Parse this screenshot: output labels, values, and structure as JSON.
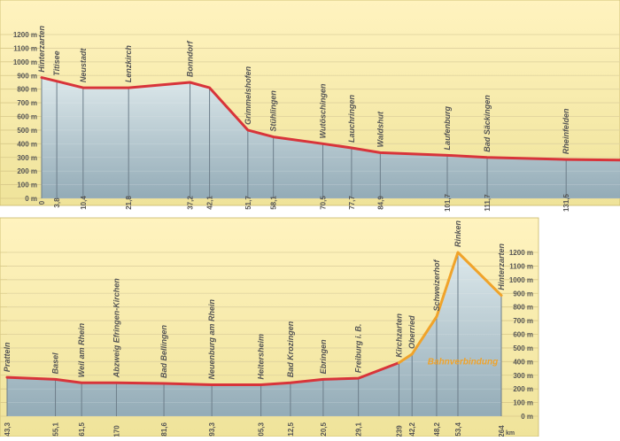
{
  "units": {
    "elevation": "m",
    "distance": "km"
  },
  "styles": {
    "panel_top_color": "#fff3bf",
    "panel_bottom_color": "#efe39a",
    "fill_top_color": "#dbe8ee",
    "fill_bottom_color": "#8ea8b8",
    "grid_color": "#d8c98a",
    "station_line_color": "#6d7e8a",
    "profile_color": "#d8343a",
    "connection_color": "#f0a32a",
    "text_color": "#555555"
  },
  "chart_data": [
    {
      "type": "area",
      "panel": "top",
      "ylim": [
        0,
        1200
      ],
      "yticks": [
        0,
        100,
        200,
        300,
        400,
        500,
        600,
        700,
        800,
        900,
        1000,
        1100,
        1200
      ],
      "ytick_labels": [
        "0 m",
        "100 m",
        "200 m",
        "300 m",
        "400 m",
        "500 m",
        "600 m",
        "700 m",
        "800 m",
        "900 m",
        "1000 m",
        "1100 m",
        "1200 m"
      ],
      "xlim": [
        0,
        145
      ],
      "grid": true,
      "stations": [
        {
          "name": "Hinterzarten",
          "km": 0,
          "km_label": "0",
          "elevation": 885
        },
        {
          "name": "Titisee",
          "km": 3.8,
          "km_label": "3,8",
          "elevation": 858
        },
        {
          "name": "Neustadt",
          "km": 10.4,
          "km_label": "10,4",
          "elevation": 810
        },
        {
          "name": "Lenzkirch",
          "km": 21.8,
          "km_label": "21,8",
          "elevation": 810
        },
        {
          "name": "Bonndorf",
          "km": 37.2,
          "km_label": "37,2",
          "elevation": 850
        },
        {
          "name": "",
          "km": 42.1,
          "km_label": "42,1",
          "elevation": 810
        },
        {
          "name": "Grimmelshofen",
          "km": 51.7,
          "km_label": "51,7",
          "elevation": 500
        },
        {
          "name": "Stühlingen",
          "km": 58.1,
          "km_label": "58,1",
          "elevation": 450
        },
        {
          "name": "Wutöschingen",
          "km": 70.5,
          "km_label": "70,5",
          "elevation": 400
        },
        {
          "name": "Lauchringen",
          "km": 77.7,
          "km_label": "77,7",
          "elevation": 370
        },
        {
          "name": "Waldshut",
          "km": 84.9,
          "km_label": "84,9",
          "elevation": 335
        },
        {
          "name": "Laufenburg",
          "km": 101.7,
          "km_label": "101,7",
          "elevation": 315
        },
        {
          "name": "Bad Säckingen",
          "km": 111.7,
          "km_label": "111,7",
          "elevation": 300
        },
        {
          "name": "Rheinfelden",
          "km": 131.5,
          "km_label": "131,5",
          "elevation": 285
        }
      ],
      "profile": [
        {
          "km": 0,
          "elevation": 885
        },
        {
          "km": 3.8,
          "elevation": 858
        },
        {
          "km": 10.4,
          "elevation": 810
        },
        {
          "km": 21.8,
          "elevation": 810
        },
        {
          "km": 37.2,
          "elevation": 850
        },
        {
          "km": 42.1,
          "elevation": 810
        },
        {
          "km": 51.7,
          "elevation": 500
        },
        {
          "km": 58.1,
          "elevation": 450
        },
        {
          "km": 70.5,
          "elevation": 400
        },
        {
          "km": 77.7,
          "elevation": 370
        },
        {
          "km": 84.9,
          "elevation": 335
        },
        {
          "km": 101.7,
          "elevation": 315
        },
        {
          "km": 111.7,
          "elevation": 300
        },
        {
          "km": 131.5,
          "elevation": 285
        },
        {
          "km": 145,
          "elevation": 280
        }
      ]
    },
    {
      "type": "area",
      "panel": "bottom",
      "ylim": [
        0,
        1200
      ],
      "yticks": [
        0,
        100,
        200,
        300,
        400,
        500,
        600,
        700,
        800,
        900,
        1000,
        1100,
        1200
      ],
      "ytick_labels": [
        "0 m",
        "100 m",
        "200 m",
        "300 m",
        "400 m",
        "500 m",
        "600 m",
        "700 m",
        "800 m",
        "900 m",
        "1000 m",
        "1100 m",
        "1200 m"
      ],
      "xlim": [
        143.3,
        264
      ],
      "grid": true,
      "stations": [
        {
          "name": "Pratteln",
          "km": 143.3,
          "km_label": "143,3",
          "elevation": 285
        },
        {
          "name": "Basel",
          "km": 155.1,
          "km_label": "155,1",
          "elevation": 270
        },
        {
          "name": "Weil am Rhein",
          "km": 161.5,
          "km_label": "161,5",
          "elevation": 245
        },
        {
          "name": "Abzweig Efringen-Kirchen",
          "km": 170,
          "km_label": "170",
          "elevation": 245
        },
        {
          "name": "Bad Bellingen",
          "km": 181.6,
          "km_label": "181,6",
          "elevation": 240
        },
        {
          "name": "Neuenburg am Rhein",
          "km": 193.3,
          "km_label": "193,3",
          "elevation": 230
        },
        {
          "name": "Heitersheim",
          "km": 205.3,
          "km_label": "205,3",
          "elevation": 230
        },
        {
          "name": "Bad Krozingen",
          "km": 212.5,
          "km_label": "212,5",
          "elevation": 245
        },
        {
          "name": "Ebringen",
          "km": 220.5,
          "km_label": "220,5",
          "elevation": 270
        },
        {
          "name": "Freiburg i. B.",
          "km": 229.1,
          "km_label": "229,1",
          "elevation": 278
        },
        {
          "name": "Kirchzarten",
          "km": 239,
          "km_label": "239",
          "elevation": 392
        },
        {
          "name": "Oberried",
          "km": 242.2,
          "km_label": "242,2",
          "elevation": 455
        },
        {
          "name": "Schweizerhof",
          "km": 248.2,
          "km_label": "248,2",
          "elevation": 730
        },
        {
          "name": "Rinken",
          "km": 253.4,
          "km_label": "253,4",
          "elevation": 1200
        },
        {
          "name": "Hinterzarten",
          "km": 264,
          "km_label": "264",
          "elevation": 885
        }
      ],
      "rail_profile": [
        {
          "km": 143.3,
          "elevation": 285
        },
        {
          "km": 155.1,
          "elevation": 270
        },
        {
          "km": 161.5,
          "elevation": 245
        },
        {
          "km": 170,
          "elevation": 245
        },
        {
          "km": 181.6,
          "elevation": 240
        },
        {
          "km": 193.3,
          "elevation": 230
        },
        {
          "km": 205.3,
          "elevation": 230
        },
        {
          "km": 212.5,
          "elevation": 245
        },
        {
          "km": 220.5,
          "elevation": 270
        },
        {
          "km": 229.1,
          "elevation": 278
        },
        {
          "km": 239,
          "elevation": 392
        }
      ],
      "bus_profile": [
        {
          "km": 239,
          "elevation": 392
        },
        {
          "km": 242.2,
          "elevation": 455
        },
        {
          "km": 248.2,
          "elevation": 730
        },
        {
          "km": 253.4,
          "elevation": 1200
        },
        {
          "km": 264,
          "elevation": 885
        }
      ],
      "annotation": "Bahnverbindung",
      "axis_unit_label": "km"
    }
  ]
}
